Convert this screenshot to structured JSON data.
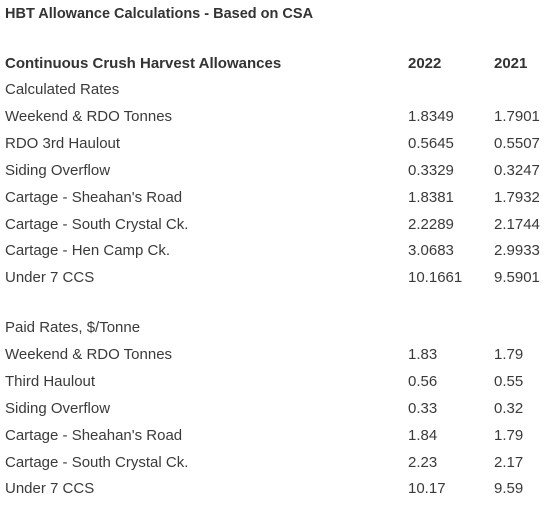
{
  "title": "HBT Allowance Calculations - Based on CSA",
  "header": [
    "Continuous Crush Harvest Allowances",
    "2022",
    "2021"
  ],
  "sections": [
    {
      "heading": "Calculated Rates",
      "rows": [
        [
          "Weekend & RDO Tonnes",
          "1.8349",
          "1.7901"
        ],
        [
          "RDO 3rd Haulout",
          "0.5645",
          "0.5507"
        ],
        [
          "Siding Overflow",
          "0.3329",
          "0.3247"
        ],
        [
          "Cartage - Sheahan's Road",
          "1.8381",
          "1.7932"
        ],
        [
          "Cartage - South Crystal Ck.",
          "2.2289",
          "2.1744"
        ],
        [
          "Cartage - Hen Camp Ck.",
          "3.0683",
          "2.9933"
        ],
        [
          "Under 7 CCS",
          "10.1661",
          "9.5901"
        ]
      ]
    },
    {
      "heading": "Paid Rates, $/Tonne",
      "rows": [
        [
          "Weekend & RDO Tonnes",
          "1.83",
          "1.79"
        ],
        [
          "Third Haulout",
          "0.56",
          "0.55"
        ],
        [
          "Siding Overflow",
          "0.33",
          "0.32"
        ],
        [
          "Cartage - Sheahan's Road",
          "1.84",
          "1.79"
        ],
        [
          "Cartage - South Crystal Ck.",
          "2.23",
          "2.17"
        ],
        [
          "Under 7 CCS",
          "10.17",
          "9.59"
        ]
      ]
    }
  ]
}
